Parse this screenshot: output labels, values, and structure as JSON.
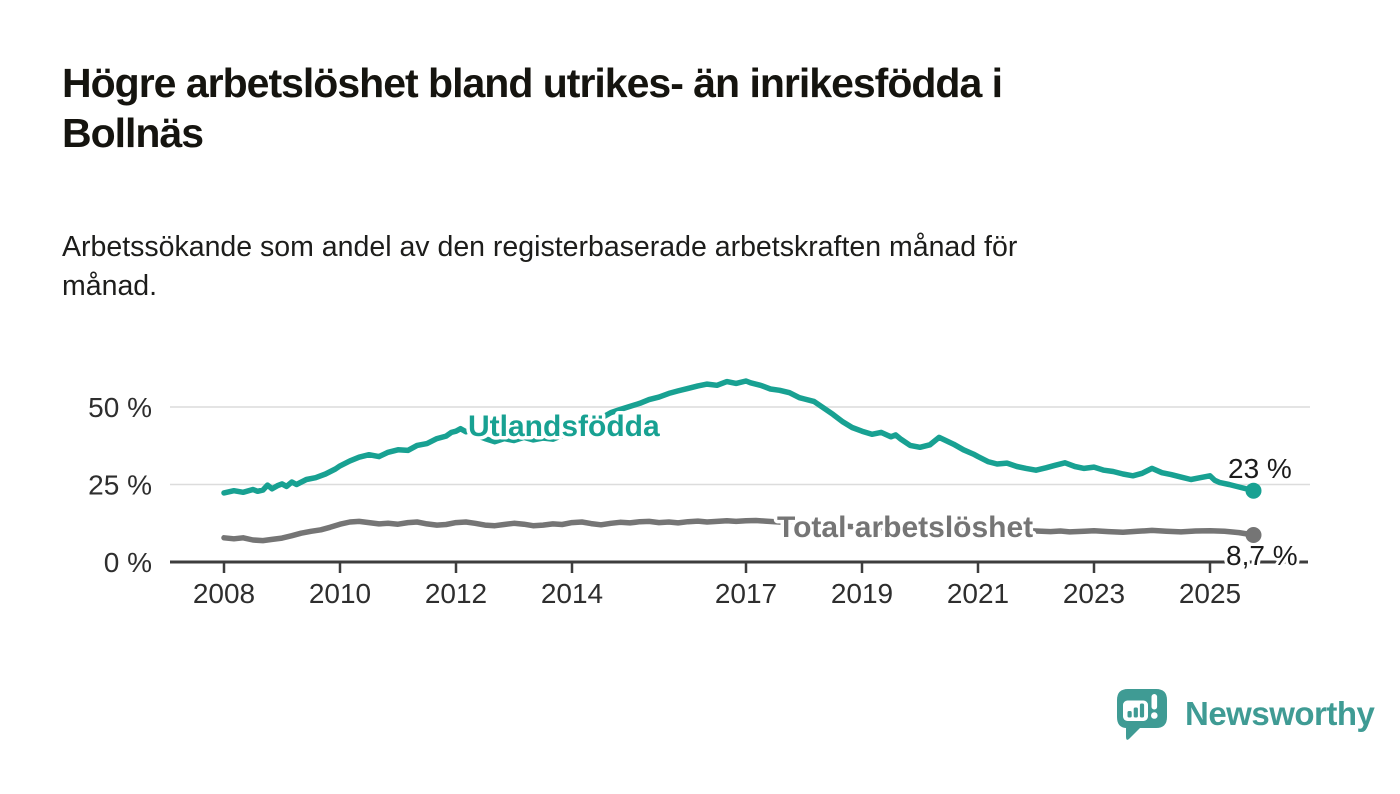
{
  "title": {
    "lines": [
      "Högre arbetslöshet bland utrikes- än inrikesfödda i",
      "Bollnäs"
    ]
  },
  "subtitle": {
    "lines": [
      "Arbetssökande som andel av den registerbaserade arbetskraften månad för",
      "månad."
    ]
  },
  "logo": {
    "text": "Newsworthy",
    "icon": "newsworthy-bar-chart-speech-bubble-icon",
    "color": "#3f9b94"
  },
  "colors": {
    "foreign_born_line": "#18a192",
    "total_line": "#757575",
    "axis": "#3d3d3d",
    "gridline": "#dcdcdc",
    "text": "#1c1c1c"
  },
  "chart_data": {
    "type": "line",
    "title": "Högre arbetslöshet bland utrikes- än inrikesfödda i Bollnäs",
    "subtitle": "Arbetssökande som andel av den registerbaserade arbetskraften månad för månad.",
    "unit": "%",
    "grid": true,
    "legend_position": "inline-labels",
    "x_axis": {
      "ticks": [
        2008,
        2010,
        2012,
        2014,
        2017,
        2019,
        2021,
        2023,
        2025
      ],
      "range": [
        2008,
        2025.9
      ]
    },
    "y_axis": {
      "ticks": [
        {
          "value": 0,
          "label": "0 %"
        },
        {
          "value": 25,
          "label": "25 %"
        },
        {
          "value": 50,
          "label": "50 %"
        }
      ],
      "range": [
        0,
        62
      ]
    },
    "series": [
      {
        "name": "Utlandsfödda",
        "color": "#18a192",
        "end_label": "23 %",
        "end_value": 23,
        "points": [
          [
            2008.0,
            22.3
          ],
          [
            2008.17,
            23.0
          ],
          [
            2008.33,
            22.5
          ],
          [
            2008.5,
            23.4
          ],
          [
            2008.58,
            22.8
          ],
          [
            2008.67,
            23.2
          ],
          [
            2008.75,
            24.8
          ],
          [
            2008.83,
            23.6
          ],
          [
            2008.92,
            24.6
          ],
          [
            2009.0,
            25.2
          ],
          [
            2009.08,
            24.4
          ],
          [
            2009.17,
            25.8
          ],
          [
            2009.25,
            25.0
          ],
          [
            2009.42,
            26.6
          ],
          [
            2009.58,
            27.2
          ],
          [
            2009.75,
            28.4
          ],
          [
            2009.92,
            30.0
          ],
          [
            2010.0,
            31.0
          ],
          [
            2010.17,
            32.6
          ],
          [
            2010.33,
            33.8
          ],
          [
            2010.5,
            34.6
          ],
          [
            2010.67,
            34.0
          ],
          [
            2010.83,
            35.4
          ],
          [
            2011.0,
            36.2
          ],
          [
            2011.17,
            36.0
          ],
          [
            2011.33,
            37.6
          ],
          [
            2011.5,
            38.2
          ],
          [
            2011.67,
            39.8
          ],
          [
            2011.83,
            40.6
          ],
          [
            2011.92,
            41.8
          ],
          [
            2012.0,
            42.2
          ],
          [
            2012.08,
            43.0
          ],
          [
            2012.17,
            42.0
          ],
          [
            2012.25,
            42.6
          ],
          [
            2012.33,
            41.0
          ],
          [
            2012.5,
            39.8
          ],
          [
            2012.67,
            38.8
          ],
          [
            2012.83,
            39.8
          ],
          [
            2013.0,
            39.2
          ],
          [
            2013.17,
            40.2
          ],
          [
            2013.33,
            39.4
          ],
          [
            2013.5,
            40.0
          ],
          [
            2013.67,
            39.6
          ],
          [
            2013.83,
            40.8
          ],
          [
            2014.0,
            42.0
          ],
          [
            2014.17,
            43.2
          ],
          [
            2014.33,
            44.8
          ],
          [
            2014.5,
            46.4
          ],
          [
            2014.67,
            48.2
          ],
          [
            2014.83,
            49.2
          ],
          [
            2015.0,
            50.2
          ],
          [
            2015.17,
            51.2
          ],
          [
            2015.33,
            52.4
          ],
          [
            2015.5,
            53.2
          ],
          [
            2015.67,
            54.4
          ],
          [
            2015.83,
            55.2
          ],
          [
            2016.0,
            56.0
          ],
          [
            2016.17,
            56.8
          ],
          [
            2016.33,
            57.4
          ],
          [
            2016.5,
            57.0
          ],
          [
            2016.67,
            58.2
          ],
          [
            2016.83,
            57.6
          ],
          [
            2017.0,
            58.4
          ],
          [
            2017.08,
            57.8
          ],
          [
            2017.25,
            57.0
          ],
          [
            2017.42,
            55.8
          ],
          [
            2017.58,
            55.4
          ],
          [
            2017.75,
            54.6
          ],
          [
            2017.92,
            53.0
          ],
          [
            2018.0,
            52.6
          ],
          [
            2018.17,
            51.8
          ],
          [
            2018.33,
            49.8
          ],
          [
            2018.5,
            47.6
          ],
          [
            2018.67,
            45.2
          ],
          [
            2018.83,
            43.4
          ],
          [
            2019.0,
            42.2
          ],
          [
            2019.17,
            41.2
          ],
          [
            2019.33,
            41.8
          ],
          [
            2019.5,
            40.4
          ],
          [
            2019.58,
            41.0
          ],
          [
            2019.67,
            39.6
          ],
          [
            2019.83,
            37.6
          ],
          [
            2020.0,
            37.0
          ],
          [
            2020.17,
            37.8
          ],
          [
            2020.33,
            40.2
          ],
          [
            2020.42,
            39.4
          ],
          [
            2020.58,
            38.0
          ],
          [
            2020.75,
            36.2
          ],
          [
            2020.92,
            34.8
          ],
          [
            2021.0,
            34.0
          ],
          [
            2021.17,
            32.4
          ],
          [
            2021.33,
            31.6
          ],
          [
            2021.5,
            31.9
          ],
          [
            2021.67,
            30.8
          ],
          [
            2021.83,
            30.2
          ],
          [
            2022.0,
            29.6
          ],
          [
            2022.17,
            30.4
          ],
          [
            2022.33,
            31.2
          ],
          [
            2022.5,
            32.0
          ],
          [
            2022.67,
            30.8
          ],
          [
            2022.83,
            30.2
          ],
          [
            2023.0,
            30.6
          ],
          [
            2023.17,
            29.6
          ],
          [
            2023.33,
            29.2
          ],
          [
            2023.5,
            28.4
          ],
          [
            2023.67,
            27.8
          ],
          [
            2023.83,
            28.6
          ],
          [
            2024.0,
            30.2
          ],
          [
            2024.17,
            28.8
          ],
          [
            2024.33,
            28.2
          ],
          [
            2024.5,
            27.4
          ],
          [
            2024.67,
            26.6
          ],
          [
            2024.83,
            27.2
          ],
          [
            2025.0,
            27.8
          ],
          [
            2025.08,
            26.4
          ],
          [
            2025.17,
            25.6
          ],
          [
            2025.33,
            25.0
          ],
          [
            2025.5,
            24.2
          ],
          [
            2025.67,
            23.4
          ],
          [
            2025.75,
            23.0
          ]
        ]
      },
      {
        "name": "Total arbetslöshet",
        "color": "#757575",
        "end_label": "8,7 %",
        "end_value": 8.7,
        "points": [
          [
            2008.0,
            7.8
          ],
          [
            2008.17,
            7.5
          ],
          [
            2008.33,
            7.8
          ],
          [
            2008.5,
            7.1
          ],
          [
            2008.67,
            6.9
          ],
          [
            2008.83,
            7.3
          ],
          [
            2009.0,
            7.7
          ],
          [
            2009.17,
            8.5
          ],
          [
            2009.33,
            9.3
          ],
          [
            2009.5,
            9.9
          ],
          [
            2009.67,
            10.4
          ],
          [
            2009.83,
            11.2
          ],
          [
            2010.0,
            12.2
          ],
          [
            2010.17,
            12.9
          ],
          [
            2010.33,
            13.1
          ],
          [
            2010.5,
            12.7
          ],
          [
            2010.67,
            12.3
          ],
          [
            2010.83,
            12.5
          ],
          [
            2011.0,
            12.2
          ],
          [
            2011.17,
            12.7
          ],
          [
            2011.33,
            12.9
          ],
          [
            2011.5,
            12.3
          ],
          [
            2011.67,
            11.9
          ],
          [
            2011.83,
            12.1
          ],
          [
            2012.0,
            12.7
          ],
          [
            2012.17,
            12.9
          ],
          [
            2012.33,
            12.5
          ],
          [
            2012.5,
            11.9
          ],
          [
            2012.67,
            11.7
          ],
          [
            2012.83,
            12.1
          ],
          [
            2013.0,
            12.5
          ],
          [
            2013.17,
            12.2
          ],
          [
            2013.33,
            11.7
          ],
          [
            2013.5,
            11.9
          ],
          [
            2013.67,
            12.3
          ],
          [
            2013.83,
            12.1
          ],
          [
            2014.0,
            12.7
          ],
          [
            2014.17,
            12.9
          ],
          [
            2014.33,
            12.4
          ],
          [
            2014.5,
            12.0
          ],
          [
            2014.67,
            12.5
          ],
          [
            2014.83,
            12.8
          ],
          [
            2015.0,
            12.6
          ],
          [
            2015.17,
            13.0
          ],
          [
            2015.33,
            13.1
          ],
          [
            2015.5,
            12.7
          ],
          [
            2015.67,
            12.9
          ],
          [
            2015.83,
            12.6
          ],
          [
            2016.0,
            13.0
          ],
          [
            2016.17,
            13.2
          ],
          [
            2016.33,
            12.9
          ],
          [
            2016.5,
            13.1
          ],
          [
            2016.67,
            13.3
          ],
          [
            2016.83,
            13.1
          ],
          [
            2017.0,
            13.3
          ],
          [
            2017.17,
            13.4
          ],
          [
            2017.33,
            13.2
          ],
          [
            2017.5,
            13.0
          ],
          [
            2018.0,
            12.4
          ],
          [
            2018.5,
            11.8
          ],
          [
            2019.0,
            11.2
          ],
          [
            2019.5,
            10.9
          ],
          [
            2020.0,
            11.1
          ],
          [
            2020.5,
            11.4
          ],
          [
            2021.0,
            10.8
          ],
          [
            2021.5,
            10.4
          ],
          [
            2022.0,
            10.0
          ],
          [
            2022.25,
            9.8
          ],
          [
            2022.42,
            10.0
          ],
          [
            2022.58,
            9.7
          ],
          [
            2022.83,
            9.9
          ],
          [
            2023.0,
            10.1
          ],
          [
            2023.25,
            9.8
          ],
          [
            2023.5,
            9.6
          ],
          [
            2023.75,
            9.9
          ],
          [
            2024.0,
            10.2
          ],
          [
            2024.25,
            9.9
          ],
          [
            2024.5,
            9.7
          ],
          [
            2024.75,
            10.0
          ],
          [
            2025.0,
            10.1
          ],
          [
            2025.25,
            9.9
          ],
          [
            2025.5,
            9.5
          ],
          [
            2025.75,
            8.7
          ]
        ]
      }
    ]
  }
}
